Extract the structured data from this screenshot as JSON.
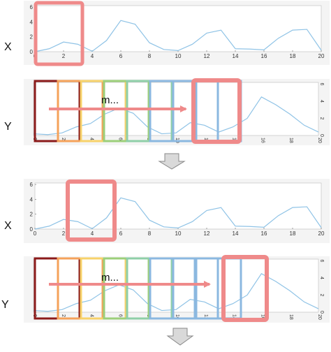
{
  "stage1": {
    "x_label": "X",
    "y_label": "Y",
    "motif_label": "m..."
  },
  "stage2": {
    "x_label": "X",
    "y_label": "Y",
    "motif_label": "m..."
  },
  "x_ticks": [
    "0",
    "2",
    "4",
    "6",
    "8",
    "10",
    "12",
    "14",
    "16",
    "18",
    "20"
  ],
  "y_ticks": [
    "0",
    "2",
    "4",
    "6"
  ],
  "colors": {
    "series": "#8fc3e6",
    "highlight": "#ef8a8a",
    "arrow": "#ef8a8a",
    "windows": [
      "#8b1a1a",
      "#f5a25a",
      "#f7d26a",
      "#9ccf7a",
      "#8fcfa8",
      "#8bb8e0",
      "#8bb8e0",
      "#8bb8e0"
    ],
    "down_arrow": "#d9d9d9"
  },
  "chart_data": [
    {
      "type": "line",
      "name": "X",
      "x": [
        0,
        1,
        2,
        3,
        4,
        5,
        6,
        7,
        8,
        9,
        10,
        11,
        12,
        13,
        14,
        15,
        16,
        17,
        18,
        19,
        20
      ],
      "y": [
        0,
        0.4,
        1.3,
        1.0,
        0.05,
        1.5,
        4.2,
        3.7,
        1.2,
        0.3,
        0.15,
        1.0,
        2.5,
        2.9,
        0.4,
        0.35,
        0.25,
        1.8,
        2.9,
        3.0,
        0.2
      ],
      "xlim": [
        0,
        20
      ],
      "ylim": [
        0,
        6.2
      ]
    },
    {
      "type": "line",
      "name": "Y",
      "x": [
        0,
        1,
        2,
        3,
        4,
        5,
        6,
        7,
        8,
        9,
        10,
        11,
        12,
        13,
        14,
        15,
        16,
        17,
        18,
        19,
        20
      ],
      "y": [
        0.2,
        0.1,
        0.3,
        1.0,
        1.4,
        2.5,
        3.2,
        2.6,
        1.0,
        0.2,
        0.3,
        1.5,
        1.2,
        0.4,
        1.0,
        2.0,
        4.5,
        3.6,
        2.5,
        1.2,
        0.4
      ],
      "xlim": [
        0,
        20
      ],
      "ylim": [
        0,
        6.2
      ]
    }
  ]
}
